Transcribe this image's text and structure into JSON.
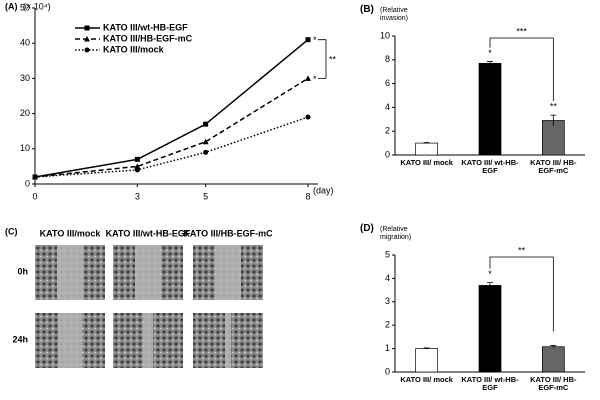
{
  "chart_data": [
    {
      "type": "line",
      "panel": "(A)",
      "y_label": "(× 10⁴)",
      "x_label": "(day)",
      "x": [
        0,
        3,
        5,
        8
      ],
      "xlim": [
        0,
        8
      ],
      "xticks": [
        0,
        3,
        5,
        8
      ],
      "ylim": [
        0,
        50
      ],
      "yticks": [
        0,
        10,
        20,
        30,
        40,
        50
      ],
      "series": [
        {
          "name": "KATO III/wt-HB-EGF",
          "color": "#000000",
          "line_style": "solid",
          "marker": "square",
          "values": [
            2,
            7,
            17,
            41
          ]
        },
        {
          "name": "KATO III/HB-EGF-mC",
          "color": "#000000",
          "line_style": "dashed",
          "marker": "triangle",
          "values": [
            2,
            5,
            12,
            30
          ]
        },
        {
          "name": "KATO III/mock",
          "color": "#000000",
          "line_style": "dotted",
          "marker": "circle",
          "values": [
            2,
            4,
            9,
            19
          ]
        }
      ],
      "annotations": [
        "*",
        "*",
        "**"
      ]
    },
    {
      "type": "bar",
      "panel": "(B)",
      "y_label": "(Relative invasion)",
      "categories": [
        "KATO III/ mock",
        "KATO III/ wt-HB-EGF",
        "KATO III/ HB-EGF-mC"
      ],
      "values": [
        1.0,
        7.7,
        2.9
      ],
      "errors": [
        0.05,
        0.15,
        0.45
      ],
      "colors": [
        "#ffffff",
        "#000000",
        "#666666"
      ],
      "ylim": [
        0,
        10
      ],
      "yticks": [
        0,
        2,
        4,
        6,
        8,
        10
      ],
      "annotations": [
        "*",
        "**",
        "***"
      ]
    },
    {
      "type": "bar",
      "panel": "(D)",
      "y_label": "(Relative migration)",
      "categories": [
        "KATO III/ mock",
        "KATO III/ wt-HB-EGF",
        "KATO III/ HB-EGF-mC"
      ],
      "values": [
        1.0,
        3.7,
        1.08
      ],
      "errors": [
        0.03,
        0.12,
        0.05
      ],
      "colors": [
        "#ffffff",
        "#000000",
        "#666666"
      ],
      "ylim": [
        0,
        5
      ],
      "yticks": [
        0,
        1,
        2,
        3,
        4,
        5
      ],
      "annotations": [
        "*",
        "**"
      ]
    }
  ],
  "image_panel": {
    "panel": "(C)",
    "columns": [
      "KATO III/mock",
      "KATO III/wt-HB-EGF",
      "KATO III/HB-EGF-mC"
    ],
    "rows": [
      "0h",
      "24h"
    ]
  }
}
